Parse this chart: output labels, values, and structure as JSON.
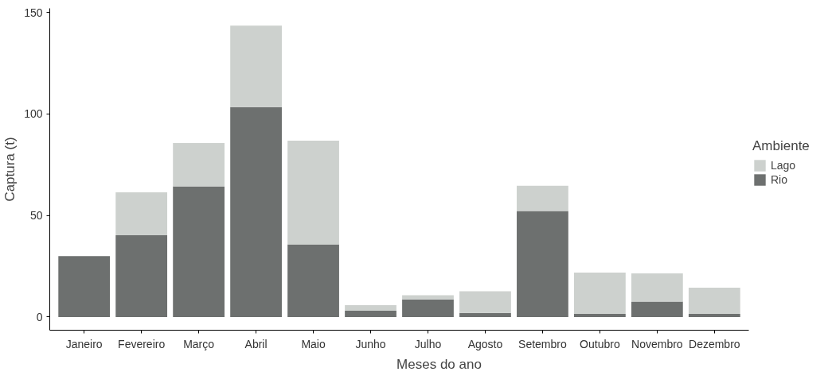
{
  "chart_data": {
    "type": "bar",
    "stacked": true,
    "xlabel": "Meses do ano",
    "ylabel": "Captura (t)",
    "legend_title": "Ambiente",
    "legend": "right",
    "grid": false,
    "categories": [
      "Janeiro",
      "Fevereiro",
      "Março",
      "Abril",
      "Maio",
      "Junho",
      "Julho",
      "Agosto",
      "Setembro",
      "Outubro",
      "Novembro",
      "Dezembro"
    ],
    "ylim": [
      -6.5,
      152
    ],
    "yticks": [
      0,
      50,
      100,
      150
    ],
    "series": [
      {
        "name": "Rio",
        "color": "#6d706f",
        "values": [
          30,
          40.3,
          64.3,
          103.4,
          35.8,
          3.1,
          8.7,
          2.0,
          52.2,
          1.5,
          7.6,
          1.5
        ]
      },
      {
        "name": "Lago",
        "color": "#cdd1ce",
        "values": [
          0,
          21.1,
          21.4,
          40.1,
          51.0,
          2.7,
          2.0,
          10.7,
          12.4,
          20.4,
          13.9,
          12.9
        ]
      }
    ]
  }
}
